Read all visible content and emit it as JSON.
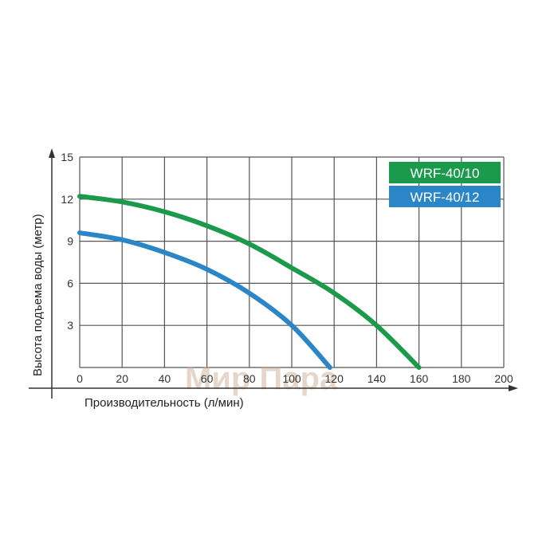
{
  "chart_data": {
    "type": "line",
    "title": "",
    "xlabel": "Производительность (л/мин)",
    "ylabel": "Высота подъема воды (метр)",
    "xlim": [
      0,
      200
    ],
    "ylim": [
      0,
      15
    ],
    "xticks": [
      "0",
      "20",
      "40",
      "60",
      "80",
      "100",
      "120",
      "140",
      "160",
      "180",
      "200"
    ],
    "yticks": [
      "3",
      "6",
      "9",
      "12",
      "15"
    ],
    "grid": true,
    "legend_position": "top-right",
    "series": [
      {
        "name": "WRF-40/10",
        "color": "#1b9a4b",
        "x": [
          0,
          20,
          40,
          60,
          80,
          100,
          120,
          140,
          160
        ],
        "y": [
          12.2,
          11.8,
          11.1,
          10.1,
          8.8,
          7.1,
          5.3,
          3.0,
          0
        ]
      },
      {
        "name": "WRF-40/12",
        "color": "#2a86c6",
        "x": [
          0,
          20,
          40,
          60,
          80,
          100,
          118
        ],
        "y": [
          9.6,
          9.1,
          8.2,
          7.0,
          5.3,
          3.0,
          0
        ]
      }
    ],
    "watermark": "Мир Пара"
  }
}
